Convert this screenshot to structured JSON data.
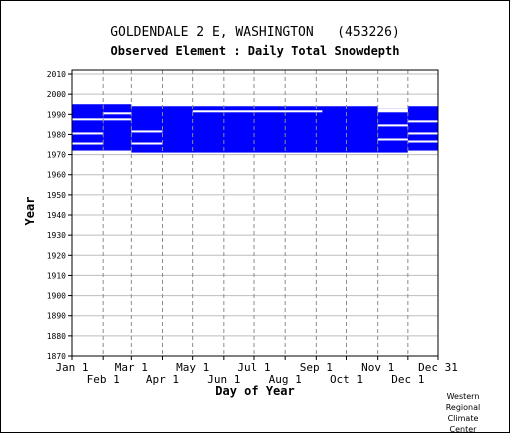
{
  "chart_data": {
    "type": "heatmap",
    "title": "GOLDENDALE 2 E, WASHINGTON   (453226)",
    "subtitle": "Observed Element : Daily Total Snowdepth",
    "xlabel": "Day of Year",
    "ylabel": "Year",
    "xlim": [
      1,
      365
    ],
    "ylim": [
      1870,
      2012
    ],
    "x_ticks_top_row": [
      {
        "label": "Jan 1",
        "day": 1
      },
      {
        "label": "Mar 1",
        "day": 60
      },
      {
        "label": "May 1",
        "day": 121
      },
      {
        "label": "Jul 1",
        "day": 182
      },
      {
        "label": "Sep 1",
        "day": 244
      },
      {
        "label": "Nov 1",
        "day": 305
      },
      {
        "label": "Dec 31",
        "day": 365
      }
    ],
    "x_ticks_bottom_row": [
      {
        "label": "Feb 1",
        "day": 32
      },
      {
        "label": "Apr 1",
        "day": 91
      },
      {
        "label": "Jun 1",
        "day": 152
      },
      {
        "label": "Aug 1",
        "day": 213
      },
      {
        "label": "Oct 1",
        "day": 274
      },
      {
        "label": "Dec 1",
        "day": 335
      }
    ],
    "y_ticks": [
      2010,
      2000,
      1990,
      1980,
      1970,
      1960,
      1950,
      1940,
      1930,
      1920,
      1910,
      1900,
      1890,
      1880,
      1870
    ],
    "grid": true,
    "series": [
      {
        "color": "#0000ff",
        "ranges": [
          {
            "day_start": 1,
            "day_end": 32,
            "year_start": 1972,
            "year_end": 1995
          },
          {
            "day_start": 32,
            "day_end": 60,
            "year_start": 1972,
            "year_end": 1995
          },
          {
            "day_start": 60,
            "day_end": 305,
            "year_start": 1971,
            "year_end": 1994
          },
          {
            "day_start": 305,
            "day_end": 335,
            "year_start": 1971,
            "year_end": 1993
          },
          {
            "day_start": 335,
            "day_end": 365,
            "year_start": 1972,
            "year_end": 1994
          }
        ],
        "gaps": [
          {
            "day_start": 1,
            "day_end": 32,
            "year_start": 1975,
            "year_end": 1976
          },
          {
            "day_start": 1,
            "day_end": 32,
            "year_start": 1980,
            "year_end": 1981
          },
          {
            "day_start": 1,
            "day_end": 32,
            "year_start": 1987,
            "year_end": 1988
          },
          {
            "day_start": 32,
            "day_end": 60,
            "year_start": 1987,
            "year_end": 1988
          },
          {
            "day_start": 32,
            "day_end": 60,
            "year_start": 1990,
            "year_end": 1991
          },
          {
            "day_start": 60,
            "day_end": 91,
            "year_start": 1975,
            "year_end": 1976
          },
          {
            "day_start": 60,
            "day_end": 91,
            "year_start": 1981,
            "year_end": 1982
          },
          {
            "day_start": 121,
            "day_end": 250,
            "year_start": 1991,
            "year_end": 1992
          },
          {
            "day_start": 305,
            "day_end": 335,
            "year_start": 1977,
            "year_end": 1978
          },
          {
            "day_start": 305,
            "day_end": 335,
            "year_start": 1984,
            "year_end": 1985
          },
          {
            "day_start": 305,
            "day_end": 335,
            "year_start": 1991,
            "year_end": 1993
          },
          {
            "day_start": 335,
            "day_end": 365,
            "year_start": 1976,
            "year_end": 1977
          },
          {
            "day_start": 335,
            "day_end": 365,
            "year_start": 1980,
            "year_end": 1981
          },
          {
            "day_start": 335,
            "day_end": 365,
            "year_start": 1986,
            "year_end": 1987
          }
        ]
      }
    ]
  },
  "credit": [
    "Western",
    "Regional",
    "Climate",
    "Center"
  ]
}
